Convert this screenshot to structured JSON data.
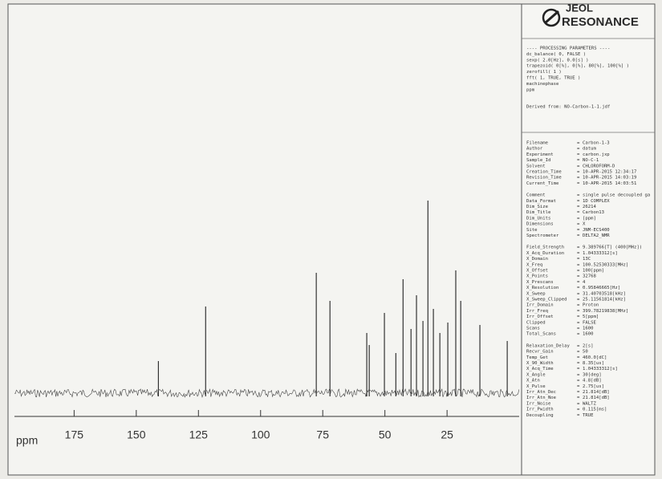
{
  "chart_data": {
    "type": "spectrum",
    "x_label": "ppm",
    "xlim": [
      199,
      -4
    ],
    "xticks": [
      175,
      150,
      125,
      100,
      75,
      50,
      25
    ],
    "ylim": [
      0,
      250
    ],
    "color": "#333333",
    "x": [
      141.1,
      122.1,
      77.6,
      72.1,
      57.3,
      56.3,
      50.2,
      45.6,
      42.7,
      39.5,
      37.3,
      34.7,
      32.7,
      30.5,
      27.9,
      24.7,
      21.5,
      19.5,
      11.8,
      0.8
    ],
    "values": [
      40,
      108,
      150,
      115,
      75,
      60,
      100,
      50,
      142,
      80,
      122,
      90,
      240,
      105,
      75,
      88,
      153,
      115,
      85,
      65
    ]
  },
  "logo": {
    "brand": "JEOL",
    "subtitle": "RESONANCE"
  },
  "parameters": {
    "processing": [
      "---- PROCESSING PARAMETERS ----",
      "dc_balance( 0, FALSE )",
      "sexp( 2.0[Hz], 0.0[s] )",
      "trapezoid( 0[%], 0[%], 80[%], 100[%] )",
      "zerofill( 1 )",
      "fft( 1, TRUE, TRUE )",
      "machinephase",
      "ppm"
    ],
    "derived": "Derived from: NO-Carbon-1-1.jdf",
    "separator": "=",
    "groups": [
      [
        [
          "Filename",
          "Carbon-1-3"
        ],
        [
          "Author",
          "datum"
        ],
        [
          "Experiment",
          "carbon.jxp"
        ],
        [
          "Sample_Id",
          "NO-C-1"
        ],
        [
          "Solvent",
          "CHLOROFORM-D"
        ],
        [
          "Creation_Time",
          "10-APR-2015 12:34:17"
        ],
        [
          "Revision_Time",
          "10-APR-2015 14:03:19"
        ],
        [
          "Current_Time",
          "10-APR-2015 14:03:51"
        ]
      ],
      [
        [
          "Comment",
          "single pulse decoupled ga"
        ],
        [
          "Data_Format",
          "1D COMPLEX"
        ],
        [
          "Dim_Size",
          "26214"
        ],
        [
          "Dim_Title",
          "Carbon13"
        ],
        [
          "Dim_Units",
          "[ppm]"
        ],
        [
          "Dimensions",
          "X"
        ],
        [
          "Site",
          "JNM-ECS400"
        ],
        [
          "Spectrometer",
          "DELTA2_NMR"
        ]
      ],
      [
        [
          "Field_Strength",
          "9.389766[T] (400[MHz])"
        ],
        [
          "X_Acq_Duration",
          "1.04333312[s]"
        ],
        [
          "X_Domain",
          "13C"
        ],
        [
          "X_Freq",
          "100.52530333[MHz]"
        ],
        [
          "X_Offset",
          "100[ppm]"
        ],
        [
          "X_Points",
          "32768"
        ],
        [
          "X_Prescans",
          "4"
        ],
        [
          "X_Resolution",
          "0.95846665[Hz]"
        ],
        [
          "X_Sweep",
          "31.40703518[kHz]"
        ],
        [
          "X_Sweep_Clipped",
          "25.11561814[kHz]"
        ],
        [
          "Irr_Domain",
          "Proton"
        ],
        [
          "Irr_Freq",
          "399.78219838[MHz]"
        ],
        [
          "Irr_Offset",
          "5[ppm]"
        ],
        [
          "Clipped",
          "FALSE"
        ],
        [
          "Scans",
          "1600"
        ],
        [
          "Total_Scans",
          "1600"
        ]
      ],
      [
        [
          "Relaxation_Delay",
          "2[s]"
        ],
        [
          "Recvr_Gain",
          "50"
        ],
        [
          "Temp_Get",
          "460.0[dC]"
        ],
        [
          "X_90_Width",
          "8.35[us]"
        ],
        [
          "X_Acq_Time",
          "1.04333312[s]"
        ],
        [
          "X_Angle",
          "30[deg]"
        ],
        [
          "X_Atn",
          "4.8[dB]"
        ],
        [
          "X_Pulse",
          "2.75[us]"
        ],
        [
          "Irr_Atn_Dec",
          "21.814[dB]"
        ],
        [
          "Irr_Atn_Noe",
          "21.814[dB]"
        ],
        [
          "Irr_Noise",
          "WALTZ"
        ],
        [
          "Irr_Pwidth",
          "0.115[ms]"
        ],
        [
          "Decoupling",
          "TRUE"
        ]
      ]
    ]
  }
}
